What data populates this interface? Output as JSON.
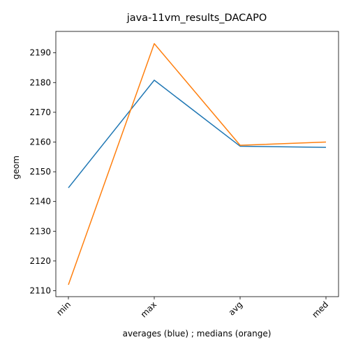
{
  "chart_data": {
    "type": "line",
    "title": "java-11vm_results_DACAPO",
    "xlabel": "averages (blue) ; medians (orange)",
    "ylabel": "geom",
    "categories": [
      "min",
      "max",
      "avg",
      "med"
    ],
    "yticks": [
      2110,
      2120,
      2130,
      2140,
      2150,
      2160,
      2170,
      2180,
      2190
    ],
    "ylim": [
      2108.0,
      2197.2
    ],
    "grid": false,
    "series": [
      {
        "values": [
          2144.6,
          2180.8,
          2158.6,
          2158.2
        ],
        "color": "#1f77b4"
      },
      {
        "values": [
          2112.0,
          2193.1,
          2158.9,
          2160.0
        ],
        "color": "#ff7f0e"
      }
    ]
  }
}
